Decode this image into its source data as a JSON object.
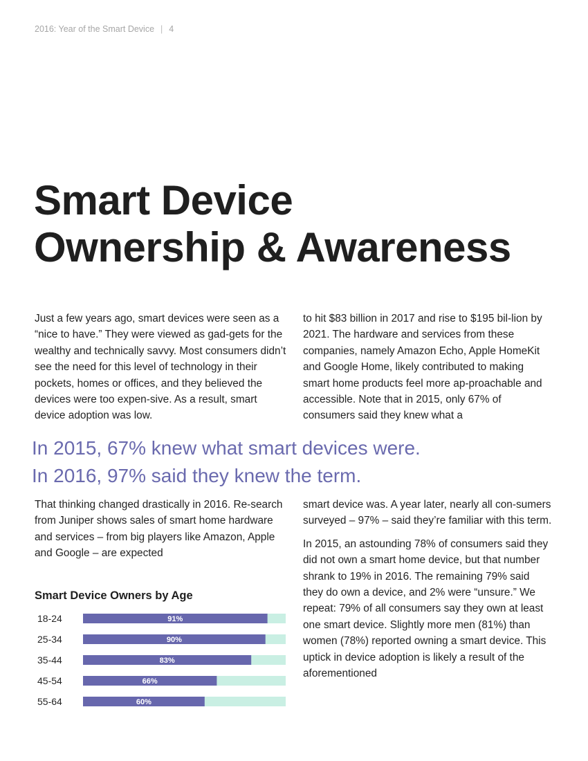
{
  "header": {
    "doc_title": "2016: Year of the Smart Device",
    "separator": "|",
    "page_number": "4"
  },
  "title_lines": [
    "Smart Device",
    "Ownership & Awareness"
  ],
  "left_column": [
    "Just a few years ago, smart devices were seen as a “nice to have.” They were viewed as gad-gets for the wealthy and technically savvy. Most consumers didn’t see the need for this level of technology in their pockets, homes or offices, and they believed the devices were too expen-sive. As a result, smart device adoption was low.",
    "That thinking changed drastically in 2016. Re-search from Juniper shows sales of smart home hardware and services – from big players like Amazon, Apple and Google – are expected"
  ],
  "right_column": [
    "to hit $83 billion in 2017 and rise to $195 bil-lion by 2021. The hardware and services from these companies, namely Amazon Echo, Apple HomeKit and Google Home, likely contributed to making smart home products feel more ap-proachable and accessible. Note that in 2015, only 67% of consumers said they knew what a",
    "smart device was. A year later, nearly all con-sumers surveyed – 97% – said they’re familiar with this term.",
    "In 2015, an astounding 78% of consumers said they did not own a smart home device, but that number shrank to 19% in 2016. The remaining 79% said they do own a device, and 2% were “unsure.” We repeat: 79% of all consumers say they own at least one smart device. Slightly more men (81%) than women (78%) reported owning a smart device. This uptick in device adoption is likely a result of the aforementioned"
  ],
  "pull_quote": [
    "In 2015, 67% knew what smart devices were.",
    "In 2016, 97% said they knew the term."
  ],
  "chart_data": {
    "type": "bar",
    "orientation": "horizontal",
    "title": "Smart Device Owners by Age",
    "categories": [
      "18-24",
      "25-34",
      "35-44",
      "45-54",
      "55-64"
    ],
    "values": [
      91,
      90,
      83,
      66,
      60
    ],
    "value_labels": [
      "91%",
      "90%",
      "83%",
      "66%",
      "60%"
    ],
    "xlim": [
      0,
      100
    ],
    "grid": false,
    "colors": {
      "bar": "#6767ad",
      "track": "#c9efe3",
      "label": "#ffffff"
    }
  }
}
